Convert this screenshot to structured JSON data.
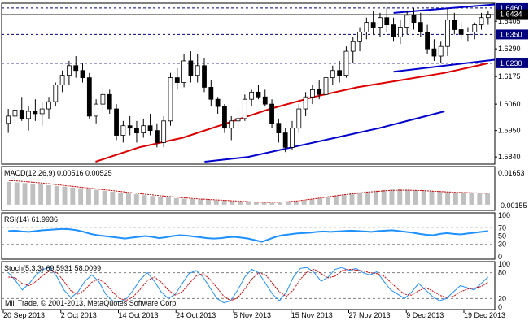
{
  "colors": {
    "background": "#ffffff",
    "frame": "#000000",
    "grid_dash": "#000080",
    "ma_slow": "#0000cc",
    "ma_fast": "#dd0000",
    "channel": "#0000cc",
    "macd_hist": "#c0c0c0",
    "macd_signal": "#cc0000",
    "rsi_line": "#1e90ff",
    "stoch_main": "#1e90ff",
    "stoch_signal": "#cc0000",
    "candle_up": "#ffffff",
    "candle_down": "#000000"
  },
  "chart_data": {
    "type": "candlestick",
    "instrument_note": "",
    "copyright": "Mill Trade, © 2001-2013, MetaQuotes Software Corp.",
    "x_tick_labels": [
      "20 Sep 2013",
      "2 Oct 2013",
      "14 Oct 2013",
      "24 Oct 2013",
      "5 Nov 2013",
      "15 Nov 2013",
      "27 Nov 2013",
      "9 Dec 2013",
      "19 Dec 2013"
    ],
    "price_axis": {
      "ylim": [
        1.581,
        1.648
      ],
      "ticks": [
        "1.6405",
        "1.6290",
        "1.6175",
        "1.6060",
        "1.5950",
        "1.5840"
      ],
      "levels": [
        {
          "value": 1.646,
          "label": "1.6460",
          "style": "dashed"
        },
        {
          "value": 1.6434,
          "label": "1.6434",
          "style": "current"
        },
        {
          "value": 1.635,
          "label": "1.6350",
          "style": "dashed"
        },
        {
          "value": 1.623,
          "label": "1.6230",
          "style": "dashed"
        }
      ]
    },
    "candles": [
      [
        1.598,
        1.604,
        1.594,
        1.601
      ],
      [
        1.601,
        1.606,
        1.597,
        1.6035
      ],
      [
        1.6035,
        1.609,
        1.599,
        1.6
      ],
      [
        1.6,
        1.605,
        1.595,
        1.603
      ],
      [
        1.603,
        1.608,
        1.599,
        1.602
      ],
      [
        1.602,
        1.607,
        1.597,
        1.604
      ],
      [
        1.604,
        1.609,
        1.6,
        1.607
      ],
      [
        1.607,
        1.615,
        1.605,
        1.614
      ],
      [
        1.614,
        1.62,
        1.611,
        1.618
      ],
      [
        1.618,
        1.624,
        1.614,
        1.622
      ],
      [
        1.622,
        1.626,
        1.617,
        1.62
      ],
      [
        1.62,
        1.623,
        1.615,
        1.617
      ],
      [
        1.617,
        1.619,
        1.6,
        1.601
      ],
      [
        1.601,
        1.608,
        1.598,
        1.606
      ],
      [
        1.606,
        1.613,
        1.603,
        1.61
      ],
      [
        1.61,
        1.612,
        1.602,
        1.604
      ],
      [
        1.604,
        1.606,
        1.591,
        1.593
      ],
      [
        1.593,
        1.599,
        1.59,
        1.597
      ],
      [
        1.597,
        1.601,
        1.593,
        1.596
      ],
      [
        1.596,
        1.599,
        1.59,
        1.594
      ],
      [
        1.594,
        1.6,
        1.592,
        1.597
      ],
      [
        1.597,
        1.602,
        1.593,
        1.595
      ],
      [
        1.595,
        1.598,
        1.588,
        1.59
      ],
      [
        1.59,
        1.601,
        1.588,
        1.599
      ],
      [
        1.599,
        1.619,
        1.597,
        1.617
      ],
      [
        1.617,
        1.621,
        1.612,
        1.615
      ],
      [
        1.615,
        1.627,
        1.613,
        1.624
      ],
      [
        1.624,
        1.628,
        1.615,
        1.618
      ],
      [
        1.618,
        1.627,
        1.615,
        1.622
      ],
      [
        1.622,
        1.625,
        1.611,
        1.613
      ],
      [
        1.613,
        1.616,
        1.605,
        1.608
      ],
      [
        1.608,
        1.609,
        1.602,
        1.605
      ],
      [
        1.605,
        1.606,
        1.594,
        1.596
      ],
      [
        1.596,
        1.601,
        1.591,
        1.599
      ],
      [
        1.599,
        1.604,
        1.595,
        1.6
      ],
      [
        1.6,
        1.61,
        1.599,
        1.608
      ],
      [
        1.608,
        1.612,
        1.605,
        1.611
      ],
      [
        1.611,
        1.614,
        1.608,
        1.609
      ],
      [
        1.609,
        1.612,
        1.605,
        1.606
      ],
      [
        1.606,
        1.608,
        1.596,
        1.598
      ],
      [
        1.598,
        1.6,
        1.59,
        1.594
      ],
      [
        1.594,
        1.596,
        1.586,
        1.588
      ],
      [
        1.588,
        1.599,
        1.587,
        1.596
      ],
      [
        1.596,
        1.606,
        1.594,
        1.604
      ],
      [
        1.604,
        1.611,
        1.601,
        1.609
      ],
      [
        1.609,
        1.614,
        1.606,
        1.612
      ],
      [
        1.612,
        1.616,
        1.608,
        1.61
      ],
      [
        1.61,
        1.618,
        1.609,
        1.617
      ],
      [
        1.617,
        1.622,
        1.614,
        1.62
      ],
      [
        1.62,
        1.624,
        1.615,
        1.618
      ],
      [
        1.618,
        1.63,
        1.617,
        1.628
      ],
      [
        1.628,
        1.634,
        1.623,
        1.632
      ],
      [
        1.632,
        1.638,
        1.628,
        1.636
      ],
      [
        1.636,
        1.642,
        1.633,
        1.64
      ],
      [
        1.64,
        1.645,
        1.635,
        1.638
      ],
      [
        1.638,
        1.644,
        1.634,
        1.642
      ],
      [
        1.642,
        1.646,
        1.636,
        1.639
      ],
      [
        1.639,
        1.642,
        1.632,
        1.634
      ],
      [
        1.634,
        1.641,
        1.631,
        1.638
      ],
      [
        1.638,
        1.645,
        1.635,
        1.643
      ],
      [
        1.643,
        1.646,
        1.637,
        1.64
      ],
      [
        1.64,
        1.644,
        1.634,
        1.636
      ],
      [
        1.636,
        1.639,
        1.627,
        1.629
      ],
      [
        1.629,
        1.633,
        1.624,
        1.626
      ],
      [
        1.626,
        1.632,
        1.623,
        1.63
      ],
      [
        1.63,
        1.646,
        1.626,
        1.641
      ],
      [
        1.641,
        1.644,
        1.635,
        1.637
      ],
      [
        1.637,
        1.64,
        1.633,
        1.635
      ],
      [
        1.635,
        1.638,
        1.632,
        1.636
      ],
      [
        1.636,
        1.64,
        1.633,
        1.639
      ],
      [
        1.639,
        1.644,
        1.637,
        1.642
      ],
      [
        1.642,
        1.645,
        1.639,
        1.6434
      ]
    ],
    "moving_averages": [
      {
        "color": "red",
        "values": [
          [
            20,
            1.582
          ],
          [
            30,
            1.588
          ],
          [
            40,
            1.592
          ],
          [
            50,
            1.598
          ],
          [
            60,
            1.604
          ],
          [
            70,
            1.609
          ],
          [
            80,
            1.613
          ],
          [
            90,
            1.616
          ],
          [
            100,
            1.619
          ],
          [
            110,
            1.623
          ]
        ]
      },
      {
        "color": "blue",
        "values": [
          [
            45,
            1.582
          ],
          [
            55,
            1.584
          ],
          [
            65,
            1.588
          ],
          [
            75,
            1.592
          ],
          [
            85,
            1.596
          ],
          [
            100,
            1.603
          ]
        ]
      }
    ],
    "channel_lines": [
      {
        "from": [
          57,
          1.644
        ],
        "to": [
          71,
          1.6475
        ]
      },
      {
        "from": [
          57,
          1.6195
        ],
        "to": [
          71,
          1.6245
        ]
      }
    ],
    "macd": {
      "label": "MACD(12,26,9) 0.00516 0.00525",
      "ylim": [
        -0.00155,
        0.01653
      ],
      "ticks": [
        "0.01653",
        "-0.00155"
      ],
      "histogram": [
        0.0105,
        0.0103,
        0.01,
        0.0097,
        0.0094,
        0.009,
        0.0087,
        0.0084,
        0.008,
        0.0077,
        0.0073,
        0.0069,
        0.0064,
        0.006,
        0.0056,
        0.0052,
        0.0048,
        0.0044,
        0.004,
        0.0036,
        0.0033,
        0.003,
        0.0028,
        0.0026,
        0.0025,
        0.0023,
        0.0021,
        0.0018,
        0.0016,
        0.0014,
        0.0012,
        0.001,
        0.0008,
        0.0007,
        0.0009,
        0.0012,
        0.0016,
        0.002,
        0.0025,
        0.0031,
        0.0037,
        0.0042,
        0.0047,
        0.0052,
        0.0057,
        0.0061,
        0.0065,
        0.0068,
        0.007,
        0.0071,
        0.007,
        0.0068,
        0.0066,
        0.0064,
        0.0062,
        0.006,
        0.0058,
        0.0056,
        0.0054,
        0.0053,
        0.0052
      ],
      "signal": [
        0.0112,
        0.011,
        0.0107,
        0.0104,
        0.0101,
        0.0097,
        0.0093,
        0.0089,
        0.0085,
        0.0081,
        0.0077,
        0.0073,
        0.0069,
        0.0065,
        0.0061,
        0.0057,
        0.0053,
        0.0049,
        0.0045,
        0.0041,
        0.0038,
        0.0035,
        0.0032,
        0.0029,
        0.0026,
        0.0024,
        0.0022,
        0.002,
        0.0018,
        0.0016,
        0.0014,
        0.0012,
        0.0011,
        0.0011,
        0.0012,
        0.0014,
        0.0017,
        0.0021,
        0.0026,
        0.0031,
        0.0036,
        0.0041,
        0.0046,
        0.005,
        0.0054,
        0.0058,
        0.0061,
        0.0064,
        0.0066,
        0.0067,
        0.0067,
        0.0066,
        0.0065,
        0.0063,
        0.0061,
        0.0059,
        0.0057,
        0.0056,
        0.0055,
        0.0054,
        0.00525
      ]
    },
    "rsi": {
      "label": "RSI(14) 61.9936",
      "ylim": [
        0,
        100
      ],
      "ticks": [
        "100",
        "70",
        "50",
        "30",
        "0"
      ],
      "levels": [
        70,
        50,
        30
      ],
      "values": [
        62,
        63,
        61,
        60,
        62,
        64,
        65,
        66,
        67,
        66,
        64,
        60,
        55,
        52,
        50,
        48,
        46,
        44,
        46,
        48,
        50,
        48,
        45,
        47,
        50,
        52,
        51,
        49,
        47,
        45,
        44,
        45,
        47,
        48,
        46,
        44,
        40,
        36,
        42,
        48,
        52,
        54,
        56,
        57,
        58,
        60,
        61,
        60,
        61,
        62,
        63,
        62,
        61,
        60,
        62,
        63,
        64,
        62,
        60,
        58,
        55,
        53,
        52,
        55,
        57,
        55,
        54,
        56,
        58,
        60,
        62
      ]
    },
    "stoch": {
      "label": "Stoch(5,3,3) 69.5931 58.0099",
      "ylim": [
        0,
        100
      ],
      "ticks": [
        "100",
        "80",
        "20",
        "0"
      ],
      "main": [
        80,
        62,
        40,
        55,
        75,
        88,
        92,
        70,
        40,
        22,
        35,
        60,
        75,
        60,
        30,
        15,
        12,
        20,
        40,
        65,
        80,
        60,
        35,
        20,
        30,
        55,
        78,
        85,
        70,
        45,
        20,
        10,
        15,
        40,
        70,
        88,
        80,
        55,
        30,
        15,
        35,
        70,
        90,
        92,
        80,
        60,
        70,
        88,
        92,
        85,
        90,
        80,
        75,
        82,
        60,
        40,
        30,
        20,
        35,
        55,
        40,
        25,
        15,
        20,
        35,
        50,
        45,
        40,
        55,
        70
      ],
      "signal": [
        70,
        68,
        55,
        50,
        60,
        75,
        85,
        80,
        60,
        38,
        30,
        40,
        58,
        65,
        55,
        35,
        20,
        16,
        25,
        42,
        62,
        70,
        58,
        40,
        28,
        35,
        55,
        72,
        78,
        65,
        45,
        25,
        15,
        22,
        42,
        65,
        80,
        75,
        55,
        35,
        25,
        40,
        65,
        82,
        88,
        78,
        68,
        72,
        85,
        88,
        86,
        84,
        80,
        78,
        72,
        58,
        42,
        30,
        28,
        38,
        45,
        38,
        28,
        22,
        25,
        35,
        42,
        44,
        48,
        58
      ]
    }
  }
}
